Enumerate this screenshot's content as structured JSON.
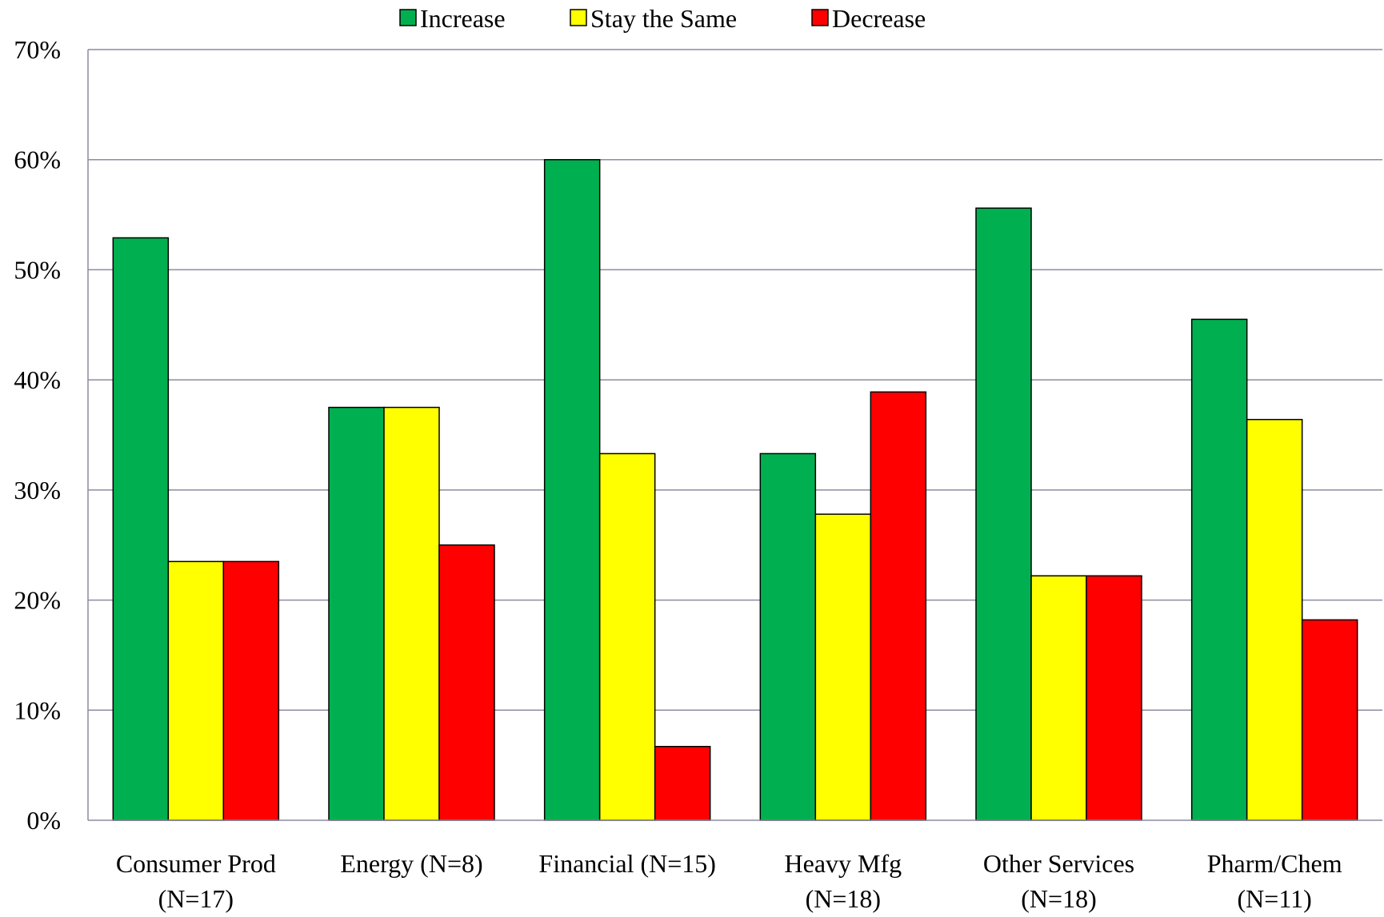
{
  "chart_data": {
    "type": "bar",
    "title": "",
    "xlabel": "",
    "ylabel": "",
    "categories": [
      [
        "Consumer Prod",
        "(N=17)"
      ],
      [
        "Energy (N=8)"
      ],
      [
        "Financial (N=15)"
      ],
      [
        "Heavy Mfg",
        "(N=18)"
      ],
      [
        "Other Services",
        "(N=18)"
      ],
      [
        "Pharm/Chem",
        "(N=11)"
      ]
    ],
    "series": [
      {
        "name": "Increase",
        "color": "#00b050",
        "values": [
          52.9,
          37.5,
          60.0,
          33.3,
          55.6,
          45.5
        ]
      },
      {
        "name": "Stay the Same",
        "color": "#ffff00",
        "values": [
          23.5,
          37.5,
          33.3,
          27.8,
          22.2,
          36.4
        ]
      },
      {
        "name": "Decrease",
        "color": "#ff0000",
        "values": [
          23.5,
          25.0,
          6.7,
          38.9,
          22.2,
          18.2
        ]
      }
    ],
    "ylim": [
      0,
      70
    ],
    "yticks": [
      "0%",
      "10%",
      "20%",
      "30%",
      "40%",
      "50%",
      "60%",
      "70%"
    ],
    "grid": true,
    "gridline_color": "#8c8ca0",
    "legend_position": "top-center"
  }
}
